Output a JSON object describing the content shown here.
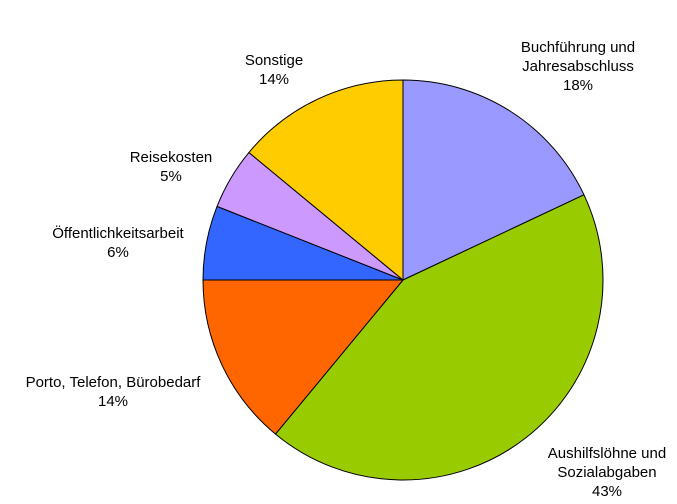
{
  "chart_data": {
    "type": "pie",
    "start_angle_deg": 0,
    "direction": "clockwise",
    "legend": "none",
    "slices": [
      {
        "name": [
          "Buchführung und",
          "Jahresabschluss"
        ],
        "value": 18,
        "label": "18%",
        "color": "#9999ff"
      },
      {
        "name": [
          "Aushilfslöhne und",
          "Sozialabgaben"
        ],
        "value": 43,
        "label": "43%",
        "color": "#99cc00"
      },
      {
        "name": [
          "Porto, Telefon, Bürobedarf"
        ],
        "value": 14,
        "label": "14%",
        "color": "#ff6600"
      },
      {
        "name": [
          "Öffentlichkeitsarbeit"
        ],
        "value": 6,
        "label": "6%",
        "color": "#3366ff"
      },
      {
        "name": [
          "Reisekosten"
        ],
        "value": 5,
        "label": "5%",
        "color": "#cc99ff"
      },
      {
        "name": [
          "Sonstige"
        ],
        "value": 14,
        "label": "14%",
        "color": "#ffcc00"
      }
    ]
  }
}
